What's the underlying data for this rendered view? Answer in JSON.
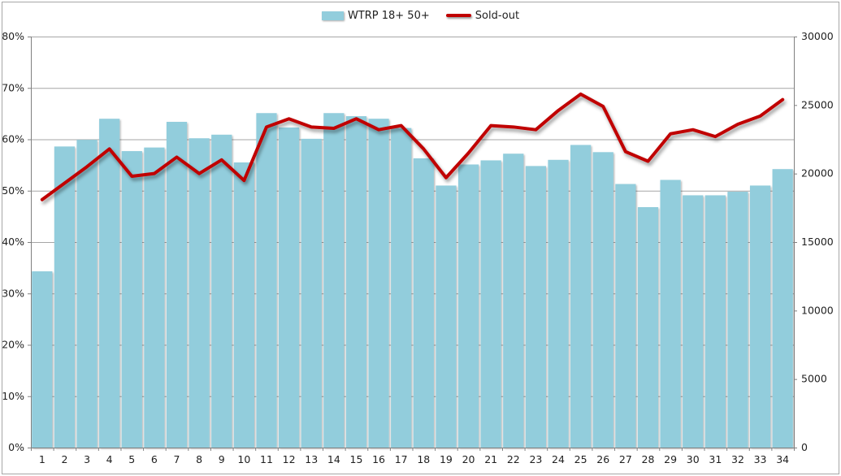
{
  "legend": {
    "items": [
      {
        "label": "WTRP 18+ 50+",
        "swatch": "bar-swatch",
        "color": "#92CDDC"
      },
      {
        "label": "Sold-out",
        "swatch": "line-swatch",
        "color": "#C00000"
      }
    ]
  },
  "chart_data": {
    "type": "bar",
    "title": "",
    "categories": [
      "1",
      "2",
      "3",
      "4",
      "5",
      "6",
      "7",
      "8",
      "9",
      "10",
      "11",
      "12",
      "13",
      "14",
      "15",
      "16",
      "17",
      "18",
      "19",
      "20",
      "21",
      "22",
      "23",
      "24",
      "25",
      "26",
      "27",
      "28",
      "29",
      "30",
      "31",
      "32",
      "33",
      "34"
    ],
    "series": [
      {
        "name": "WTRP 18+ 50+",
        "type": "bar",
        "axis": "left",
        "unit": "percent",
        "color": "#92CDDC",
        "values": [
          34.3,
          58.6,
          59.9,
          64.0,
          57.7,
          58.4,
          63.4,
          60.2,
          60.9,
          55.5,
          65.1,
          62.3,
          60.1,
          65.1,
          64.5,
          64.0,
          62.2,
          56.3,
          51.0,
          55.1,
          55.9,
          57.2,
          54.8,
          56.0,
          58.9,
          57.5,
          51.3,
          46.8,
          52.1,
          49.1,
          49.1,
          49.8,
          51.0,
          54.2
        ]
      },
      {
        "name": "Sold-out",
        "type": "line",
        "axis": "right",
        "unit": "count",
        "color": "#C00000",
        "values": [
          18100,
          19300,
          20500,
          21800,
          19800,
          20000,
          21200,
          20000,
          21000,
          19500,
          23400,
          24000,
          23400,
          23300,
          24000,
          23200,
          23500,
          21800,
          19700,
          21500,
          23500,
          23400,
          23200,
          24600,
          25800,
          24900,
          21600,
          20900,
          22900,
          23200,
          22700,
          23600,
          24200,
          25400
        ]
      }
    ],
    "left_axis": {
      "min": 0,
      "max": 80,
      "step": 10,
      "tick_labels": [
        "0%",
        "10%",
        "20%",
        "30%",
        "40%",
        "50%",
        "60%",
        "70%",
        "80%"
      ]
    },
    "right_axis": {
      "min": 0,
      "max": 30000,
      "step": 5000,
      "tick_labels": [
        "0",
        "5000",
        "10000",
        "15000",
        "20000",
        "25000",
        "30000"
      ]
    },
    "grid": "horizontal",
    "grid_color": "#A6A6A6",
    "axis_color": "#808080",
    "legend_position": "top-center"
  }
}
